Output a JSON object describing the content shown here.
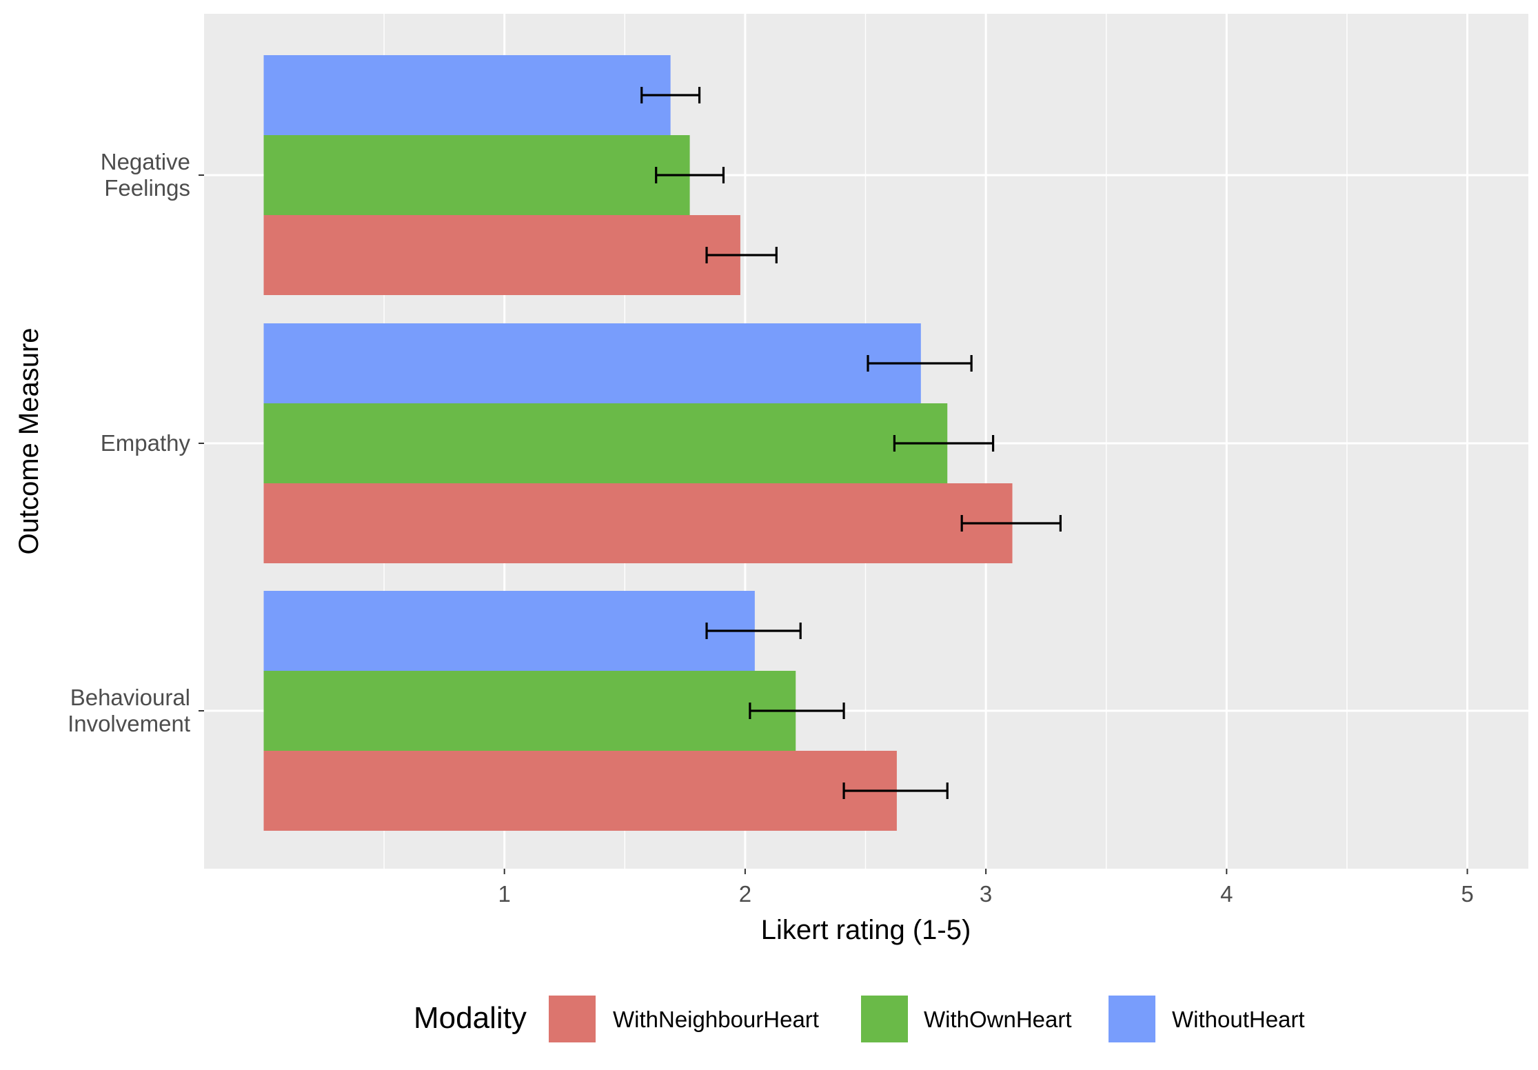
{
  "chart_data": {
    "type": "bar",
    "orientation": "horizontal",
    "title": "",
    "xlabel": "Likert rating (1-5)",
    "ylabel": "Outcome Measure",
    "xlim": [
      -0.25,
      5.25
    ],
    "x_ticks": [
      1,
      2,
      3,
      4,
      5
    ],
    "x_tick_labels": [
      "1",
      "2",
      "3",
      "4",
      "5"
    ],
    "categories": [
      {
        "id": "negative-feelings",
        "lines": [
          "Negative",
          "Feelings"
        ]
      },
      {
        "id": "empathy",
        "lines": [
          "Empathy"
        ]
      },
      {
        "id": "behavioural-involvement",
        "lines": [
          "Behavioural",
          "Involvement"
        ]
      }
    ],
    "series": [
      {
        "name": "WithoutHeart",
        "color": "#789DFC",
        "values": [
          1.69,
          2.73,
          2.04
        ],
        "error_low": [
          1.57,
          2.51,
          1.84
        ],
        "error_high": [
          1.81,
          2.94,
          2.23
        ]
      },
      {
        "name": "WithOwnHeart",
        "color": "#6ABA48",
        "values": [
          1.77,
          2.84,
          2.21
        ],
        "error_low": [
          1.63,
          2.62,
          2.02
        ],
        "error_high": [
          1.91,
          3.03,
          2.41
        ]
      },
      {
        "name": "WithNeighbourHeart",
        "color": "#DC756E",
        "values": [
          1.98,
          3.11,
          2.63
        ],
        "error_low": [
          1.84,
          2.9,
          2.41
        ],
        "error_high": [
          2.13,
          3.31,
          2.84
        ]
      }
    ],
    "legend": {
      "title": "Modality",
      "position": "bottom",
      "order": [
        "WithNeighbourHeart",
        "WithOwnHeart",
        "WithoutHeart"
      ]
    },
    "grid": true
  }
}
